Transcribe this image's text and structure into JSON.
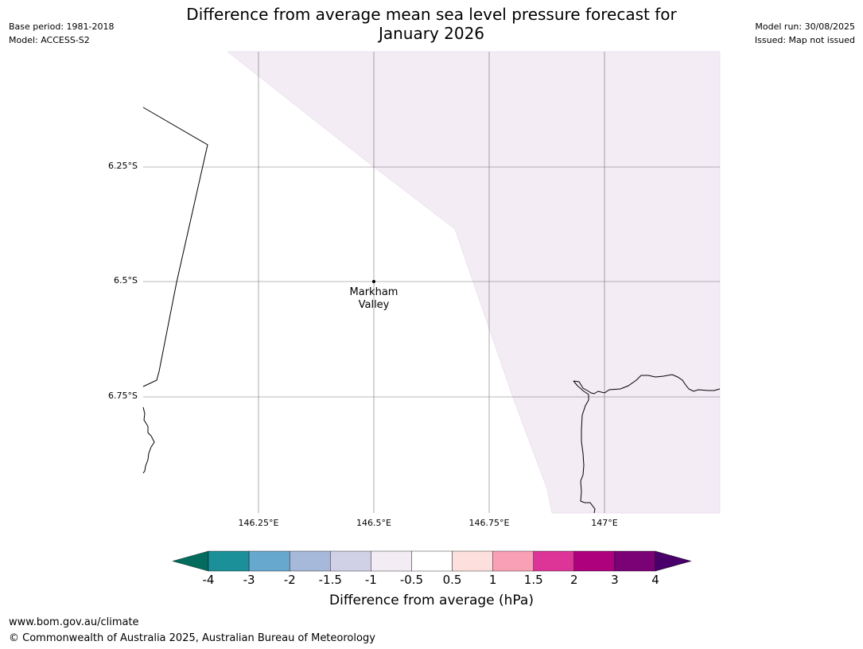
{
  "header": {
    "title_line1": "Difference from average mean sea level pressure forecast for",
    "title_line2": "January 2026",
    "base_period": "Base period: 1981-2018",
    "model": "Model: ACCESS-S2",
    "model_run": "Model run: 30/08/2025",
    "issued": "Issued: Map not issued"
  },
  "map": {
    "latitude_labels": [
      "6.25°S",
      "6.5°S",
      "6.75°S"
    ],
    "longitude_labels": [
      "146.25°E",
      "146.5°E",
      "146.75°E",
      "147°E"
    ],
    "place": {
      "name_line1": "Markham",
      "name_line2": "Valley"
    },
    "shaded_category": "-1 to -0.5",
    "shade_color": "#f4ecf5"
  },
  "colorbar": {
    "label": "Difference from average (hPa)",
    "ticks": [
      "-4",
      "-3",
      "-2",
      "-1.5",
      "-1",
      "-0.5",
      "0.5",
      "1",
      "1.5",
      "2",
      "3",
      "4"
    ],
    "colors": [
      "#1b9098",
      "#67a8cf",
      "#a6b9db",
      "#d0d1e6",
      "#f4ecf5",
      "#ffffff",
      "#fde0dd",
      "#f99fb6",
      "#dd3497",
      "#ad017e",
      "#7b0177"
    ],
    "low_extend_color": "#036c5f",
    "high_extend_color": "#4a006a"
  },
  "footer": {
    "url": "www.bom.gov.au/climate",
    "copyright": "© Commonwealth of Australia 2025, Australian Bureau of Meteorology"
  }
}
